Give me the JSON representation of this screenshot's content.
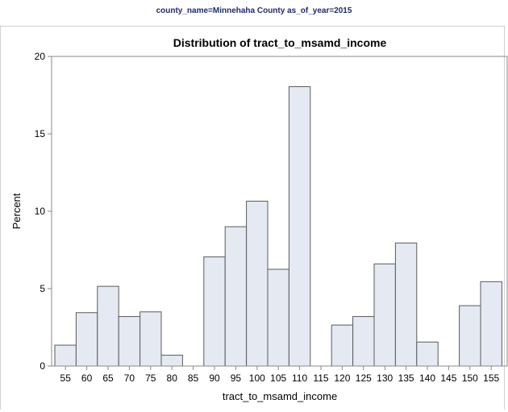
{
  "byline": "county_name=Minnehaha County as_of_year=2015",
  "chart_data": {
    "type": "bar",
    "title": "Distribution of tract_to_msamd_income",
    "xlabel": "tract_to_msamd_income",
    "ylabel": "Percent",
    "categories": [
      "55",
      "60",
      "65",
      "70",
      "75",
      "80",
      "85",
      "90",
      "95",
      "100",
      "105",
      "110",
      "115",
      "120",
      "125",
      "130",
      "135",
      "140",
      "145",
      "150",
      "155"
    ],
    "values": [
      1.35,
      3.45,
      5.15,
      3.2,
      3.5,
      0.7,
      0,
      7.05,
      9.0,
      10.65,
      6.25,
      18.05,
      0,
      2.65,
      3.2,
      6.6,
      7.95,
      1.55,
      0,
      3.9,
      5.45
    ],
    "ylim": [
      0,
      20
    ],
    "yticks": [
      0,
      5,
      10,
      15,
      20
    ],
    "grid": false,
    "colors": {
      "bar_fill": "#e5e9f2",
      "bar_stroke": "#5a5a5a",
      "axis": "#8a8a8a"
    }
  }
}
